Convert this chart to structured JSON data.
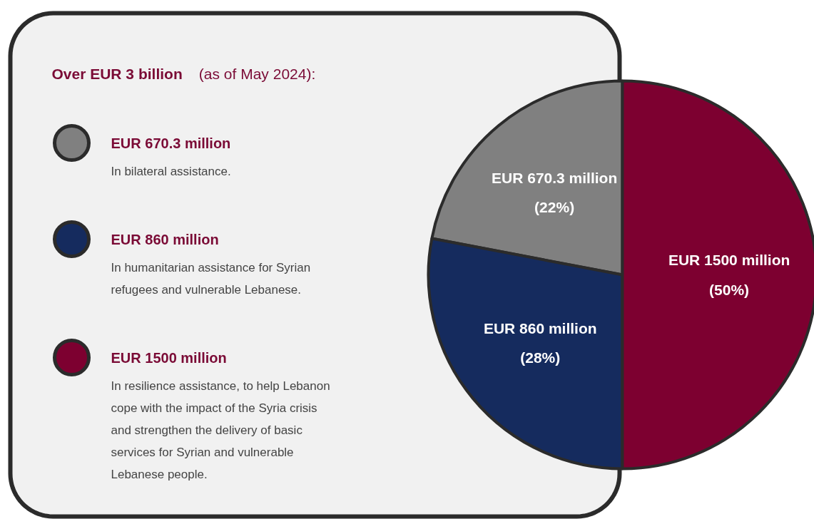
{
  "chart_data": {
    "type": "pie",
    "title": "Over EUR 3 billion",
    "subtitle": "(as of May 2024):",
    "categories": [
      "EUR 670.3 million",
      "EUR 860 million",
      "EUR 1500 million"
    ],
    "values": [
      22,
      28,
      50
    ],
    "colors": [
      "#808080",
      "#152b5e",
      "#7d0030"
    ],
    "value_labels": [
      "EUR 670.3 million\n(22%)",
      "EUR 860 million\n(28%)",
      "EUR 1500 million\n(50%)"
    ],
    "annotations": [
      "In bilateral assistance.",
      "In humanitarian assistance for Syrian refugees and vulnerable Lebanese.",
      "In resilience assistance, to help Lebanon cope with the impact of the Syria crisis and strengthen the delivery of basic services for Syrian and vulnerable Lebanese people."
    ],
    "legend": "left"
  }
}
